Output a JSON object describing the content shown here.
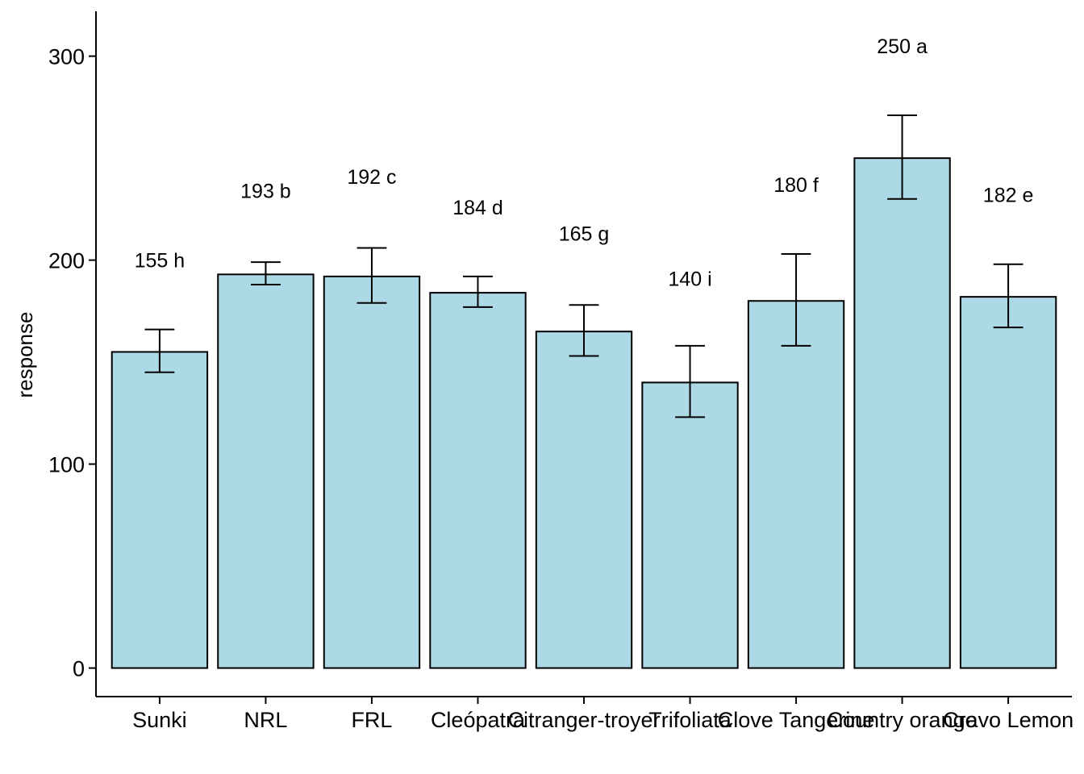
{
  "chart_data": {
    "type": "bar",
    "ylabel": "response",
    "xlabel": "",
    "ylim": [
      -14,
      322
    ],
    "yticks": [
      0,
      100,
      200,
      300
    ],
    "categories": [
      "Sunki",
      "NRL",
      "FRL",
      "Cleópatra",
      "Citranger-troyer",
      "Trifoliata",
      "Clove Tangerine",
      "Country orange",
      "Cravo Lemon"
    ],
    "values": [
      155,
      193,
      192,
      184,
      165,
      140,
      180,
      250,
      182
    ],
    "error_low": [
      145,
      188,
      179,
      177,
      153,
      123,
      158,
      230,
      167
    ],
    "error_high": [
      166,
      199,
      206,
      192,
      178,
      158,
      203,
      271,
      198
    ],
    "labels": [
      "155 h",
      "193 b",
      "192 c",
      "184 d",
      "165 g",
      "140 i",
      "180 f",
      "250 a",
      "182 e"
    ],
    "label_y": [
      200,
      234,
      241,
      226,
      213,
      191,
      237,
      305,
      232
    ],
    "colors": {
      "bar_fill": "#ADD8E6",
      "bar_stroke": "#000000",
      "axis": "#000000"
    },
    "grid": false,
    "legend": "none"
  }
}
